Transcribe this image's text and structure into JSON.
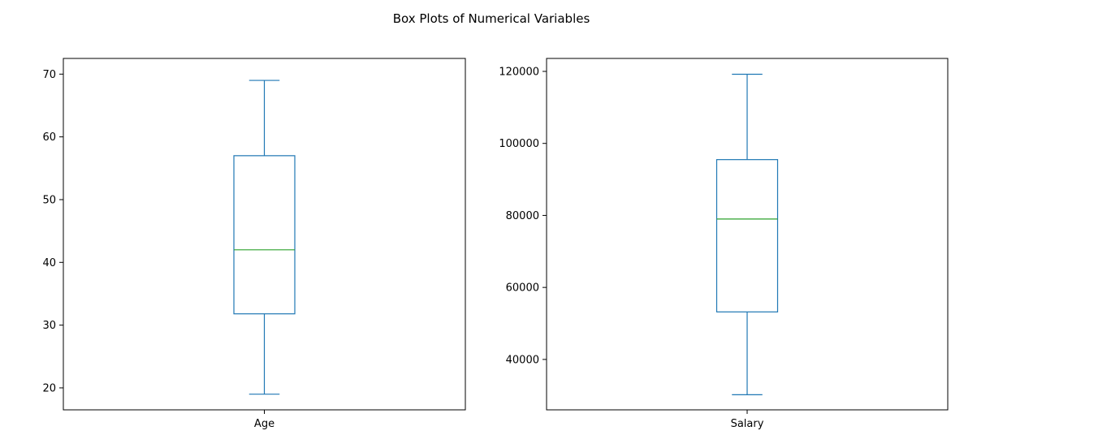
{
  "chart_data": {
    "type": "box",
    "title": "Box Plots of Numerical Variables",
    "colors": {
      "box": "#1f77b4",
      "median": "#2ca02c",
      "axes": "#000000"
    },
    "grid": false,
    "legend": "none",
    "panels": [
      {
        "category": "Age",
        "ylim": [
          16.5,
          72.5
        ],
        "yticks": [
          20,
          30,
          40,
          50,
          60,
          70
        ],
        "whisker_low": 19,
        "q1": 31.8,
        "median": 42,
        "q3": 57,
        "whisker_high": 69
      },
      {
        "category": "Salary",
        "ylim": [
          26000,
          123600
        ],
        "yticks": [
          40000,
          60000,
          80000,
          100000,
          120000
        ],
        "whisker_low": 30200,
        "q1": 53200,
        "median": 79000,
        "q3": 95500,
        "whisker_high": 119200
      }
    ]
  }
}
